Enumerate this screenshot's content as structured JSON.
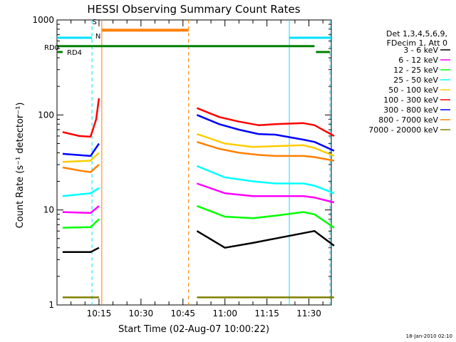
{
  "chart_data": {
    "type": "line",
    "title": "HESSI Observing Summary Count Rates",
    "xlabel": "Start Time (02-Aug-07 10:00:22)",
    "ylabel": "Count Rate (s⁻¹ detector⁻¹)",
    "yscale": "log",
    "ylim": [
      1,
      1000
    ],
    "xlim_minutes": [
      0,
      98
    ],
    "yticks": [
      "1",
      "10",
      "100",
      "1000"
    ],
    "xticks": [
      {
        "label": "10:15",
        "minute": 15
      },
      {
        "label": "10:30",
        "minute": 30
      },
      {
        "label": "10:45",
        "minute": 45
      },
      {
        "label": "11:00",
        "minute": 60
      },
      {
        "label": "11:15",
        "minute": 75
      },
      {
        "label": "11:30",
        "minute": 90
      }
    ],
    "timestamp": "18-Jan-2010 02:10",
    "legend": {
      "placement": "right",
      "header": [
        "Det 1,3,4,5,6,9,",
        "FDecim 1, Att 0"
      ]
    },
    "series": [
      {
        "name": "3 - 6 keV",
        "color": "#000000",
        "segments": [
          [
            [
              2,
              3.6
            ],
            [
              12,
              3.6
            ],
            [
              15,
              4
            ]
          ],
          [
            [
              50,
              6
            ],
            [
              60,
              4
            ],
            [
              70,
              4.5
            ],
            [
              78,
              5
            ],
            [
              92,
              6
            ],
            [
              99,
              4.2
            ]
          ]
        ]
      },
      {
        "name": "6 - 12 keV",
        "color": "#ff00ff",
        "segments": [
          [
            [
              2,
              9.5
            ],
            [
              12,
              9.3
            ],
            [
              15,
              11
            ]
          ],
          [
            [
              50,
              19
            ],
            [
              60,
              15
            ],
            [
              70,
              14
            ],
            [
              78,
              14
            ],
            [
              88,
              14
            ],
            [
              92,
              13.5
            ],
            [
              99,
              12
            ]
          ]
        ]
      },
      {
        "name": "12 - 25 keV",
        "color": "#00ff00",
        "segments": [
          [
            [
              2,
              6.5
            ],
            [
              12,
              6.6
            ],
            [
              15,
              8
            ]
          ],
          [
            [
              50,
              11
            ],
            [
              60,
              8.5
            ],
            [
              70,
              8.2
            ],
            [
              78,
              8.7
            ],
            [
              88,
              9.5
            ],
            [
              92,
              9
            ],
            [
              99,
              6.5
            ]
          ]
        ]
      },
      {
        "name": "25 - 50 keV",
        "color": "#00ffff",
        "segments": [
          [
            [
              2,
              14
            ],
            [
              12,
              15
            ],
            [
              15,
              17
            ]
          ],
          [
            [
              50,
              29
            ],
            [
              60,
              22
            ],
            [
              70,
              20
            ],
            [
              78,
              19
            ],
            [
              88,
              19
            ],
            [
              92,
              18
            ],
            [
              99,
              15
            ]
          ]
        ]
      },
      {
        "name": "50 - 100 keV",
        "color": "#ffcc00",
        "segments": [
          [
            [
              2,
              32
            ],
            [
              12,
              33
            ],
            [
              15,
              40
            ]
          ],
          [
            [
              50,
              63
            ],
            [
              60,
              50
            ],
            [
              70,
              46
            ],
            [
              78,
              47
            ],
            [
              88,
              48
            ],
            [
              92,
              45
            ],
            [
              99,
              37
            ]
          ]
        ]
      },
      {
        "name": "100 - 300 keV",
        "color": "#ff0000",
        "segments": [
          [
            [
              2,
              66
            ],
            [
              8,
              60
            ],
            [
              12,
              59
            ],
            [
              14,
              90
            ],
            [
              15,
              150
            ]
          ],
          [
            [
              50,
              118
            ],
            [
              58,
              95
            ],
            [
              65,
              85
            ],
            [
              72,
              78
            ],
            [
              78,
              80
            ],
            [
              88,
              82
            ],
            [
              92,
              78
            ],
            [
              99,
              60
            ]
          ]
        ]
      },
      {
        "name": "300 - 800 keV",
        "color": "#0000ff",
        "segments": [
          [
            [
              2,
              39
            ],
            [
              12,
              37
            ],
            [
              15,
              50
            ]
          ],
          [
            [
              50,
              100
            ],
            [
              58,
              80
            ],
            [
              65,
              70
            ],
            [
              72,
              63
            ],
            [
              78,
              62
            ],
            [
              88,
              55
            ],
            [
              92,
              52
            ],
            [
              99,
              42
            ]
          ]
        ]
      },
      {
        "name": "800 - 7000 keV",
        "color": "#ff8000",
        "segments": [
          [
            [
              2,
              28
            ],
            [
              8,
              26
            ],
            [
              12,
              25
            ],
            [
              15,
              30
            ]
          ],
          [
            [
              50,
              52
            ],
            [
              58,
              44
            ],
            [
              65,
              40
            ],
            [
              72,
              38
            ],
            [
              78,
              37
            ],
            [
              88,
              37
            ],
            [
              92,
              36
            ],
            [
              99,
              33
            ]
          ]
        ]
      },
      {
        "name": "7000 - 20000 keV",
        "color": "#808000",
        "segments": [
          [
            [
              2,
              1.2
            ],
            [
              12,
              1.2
            ],
            [
              15,
              1.2
            ]
          ],
          [
            [
              50,
              1.2
            ],
            [
              70,
              1.2
            ],
            [
              92,
              1.2
            ],
            [
              99,
              1.2
            ]
          ]
        ]
      }
    ],
    "markers": {
      "saa": {
        "label": "S",
        "color": "#ff8000",
        "start": 16,
        "end": 47
      },
      "night": {
        "label": "N",
        "color": "#00e0ff"
      },
      "rd0": {
        "label": "RD0",
        "color": "#008000"
      },
      "rd4": {
        "label": "RD4",
        "color": "#008000"
      }
    }
  }
}
